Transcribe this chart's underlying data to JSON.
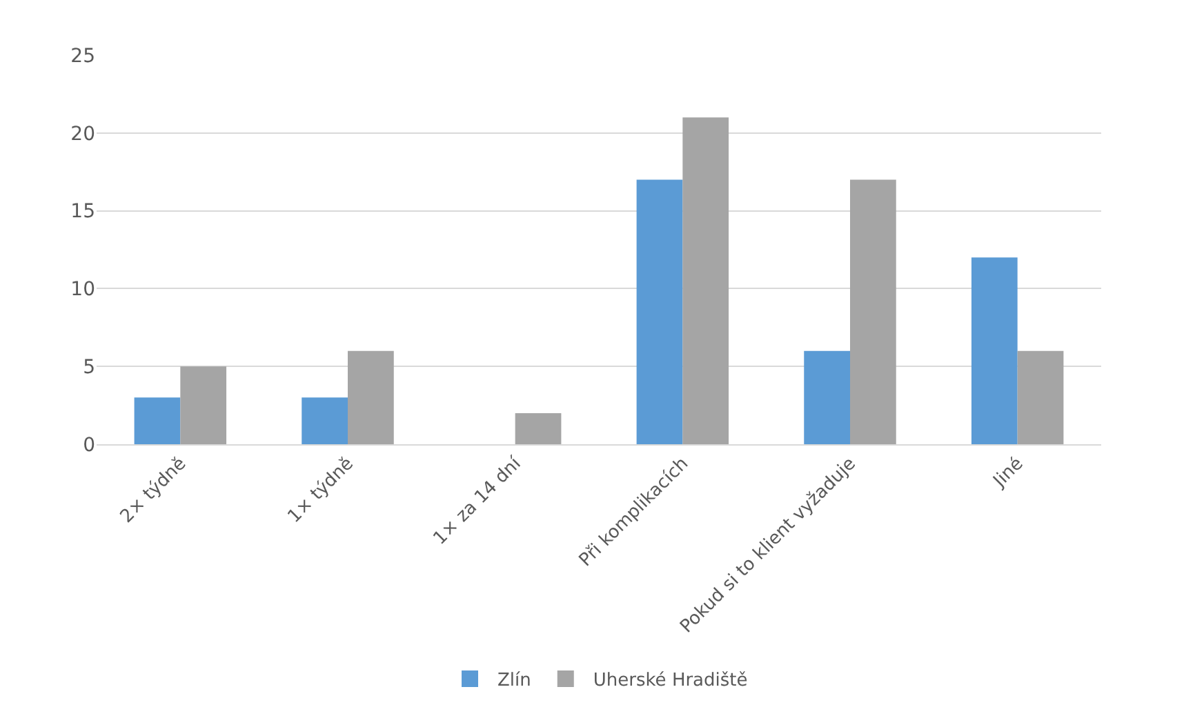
{
  "chart_data": {
    "type": "bar",
    "categories": [
      "2× týdně",
      "1× týdně",
      "1× za 14 dní",
      "Při komplikacích",
      "Pokud si to klient vyžaduje",
      "Jiné"
    ],
    "series": [
      {
        "name": "Zlín",
        "color": "#5b9bd5",
        "values": [
          3,
          3,
          0,
          17,
          6,
          12
        ]
      },
      {
        "name": "Uherské Hradiště",
        "color": "#a5a5a5",
        "values": [
          5,
          6,
          2,
          21,
          17,
          6
        ]
      }
    ],
    "ylim": [
      0,
      25
    ],
    "yticks": [
      0,
      5,
      10,
      15,
      20,
      25
    ],
    "grid": "y",
    "legend": "bottom"
  }
}
